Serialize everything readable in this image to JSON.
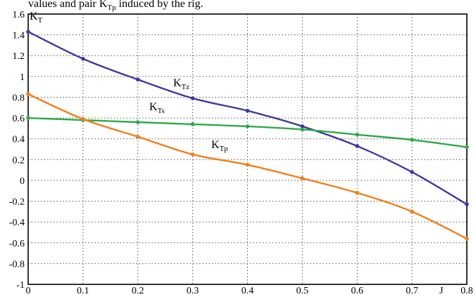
{
  "page": {
    "caption_main": "values and pair K",
    "caption_sub": "Tp",
    "caption_tail": " induced by the rig."
  },
  "chart_data": {
    "type": "line",
    "x": [
      0,
      0.1,
      0.2,
      0.3,
      0.4,
      0.5,
      0.6,
      0.7,
      0.8
    ],
    "xlim": [
      0,
      0.8
    ],
    "ylim": [
      -1,
      1.6
    ],
    "xticks": [
      "0",
      "0.1",
      "0.2",
      "0.3",
      "0.4",
      "0.5",
      "0.6",
      "0.7",
      "0.8"
    ],
    "yticks": [
      "1.6",
      "1.4",
      "1.2",
      "1",
      "0.8",
      "0.6",
      "0.4",
      "0.2",
      "0",
      "-0.2",
      "-0.4",
      "-0.6",
      "-0.8",
      "-1"
    ],
    "xlabel": "J",
    "ylabel_main": "K",
    "ylabel_sub": "T",
    "grid": true,
    "series": [
      {
        "name_main": "K",
        "name_sub": "Tz",
        "color": "#3d3a9e",
        "values": [
          1.43,
          1.17,
          0.97,
          0.79,
          0.67,
          0.52,
          0.33,
          0.08,
          -0.23
        ]
      },
      {
        "name_main": "K",
        "name_sub": "Ts",
        "color": "#2fa84a",
        "values": [
          0.6,
          0.58,
          0.56,
          0.54,
          0.52,
          0.49,
          0.44,
          0.39,
          0.32
        ]
      },
      {
        "name_main": "K",
        "name_sub": "Tp",
        "color": "#f07f1a",
        "values": [
          0.83,
          0.59,
          0.42,
          0.25,
          0.15,
          0.02,
          -0.12,
          -0.3,
          -0.56
        ]
      }
    ]
  }
}
